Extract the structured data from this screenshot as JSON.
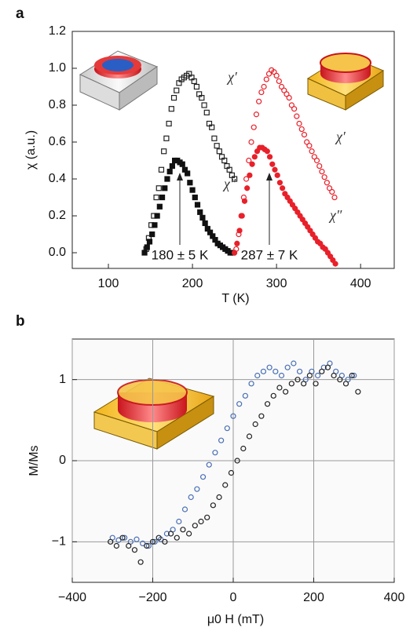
{
  "chart_data": [
    {
      "type": "scatter",
      "panel_label": "a",
      "x_label": "T (K)",
      "y_label": "χ (a.u.)",
      "xlim": [
        57,
        440
      ],
      "ylim": [
        -0.085,
        1.2
      ],
      "xticks": [
        100,
        200,
        300,
        400
      ],
      "yticks": [
        {
          "value": 0,
          "label": "0.0"
        },
        0.2,
        0.4,
        0.6,
        0.8,
        {
          "value": 1,
          "label": "1.0"
        },
        1.2
      ],
      "grid": false,
      "annotations": [
        "180 ± 5 K",
        "287 ± 7 K"
      ],
      "series": [
        {
          "name": "χ′",
          "color": "#222222",
          "marker": "square-open",
          "x": [
            145,
            148,
            151,
            154,
            157,
            160,
            163,
            166,
            169,
            172,
            175,
            178,
            181,
            184,
            187,
            190,
            193,
            196,
            199,
            202,
            205,
            208,
            211,
            214,
            217,
            220,
            223,
            226,
            229,
            232,
            235,
            238,
            241,
            244,
            247,
            250
          ],
          "values": [
            0.02,
            0.08,
            0.15,
            0.2,
            0.3,
            0.35,
            0.45,
            0.55,
            0.62,
            0.7,
            0.78,
            0.84,
            0.88,
            0.92,
            0.94,
            0.95,
            0.96,
            0.97,
            0.95,
            0.93,
            0.9,
            0.86,
            0.84,
            0.8,
            0.76,
            0.7,
            0.68,
            0.62,
            0.58,
            0.55,
            0.52,
            0.5,
            0.47,
            0.45,
            0.42,
            0.4
          ]
        },
        {
          "name": "χ″",
          "color": "#111111",
          "marker": "square-filled",
          "x": [
            143,
            146,
            149,
            152,
            155,
            158,
            161,
            164,
            167,
            170,
            173,
            176,
            179,
            182,
            185,
            188,
            191,
            194,
            197,
            200,
            203,
            206,
            209,
            212,
            215,
            218,
            221,
            224,
            227,
            230,
            233,
            236,
            239,
            242,
            245,
            248
          ],
          "values": [
            0.0,
            0.03,
            0.06,
            0.1,
            0.15,
            0.2,
            0.25,
            0.3,
            0.35,
            0.4,
            0.44,
            0.47,
            0.5,
            0.5,
            0.49,
            0.48,
            0.45,
            0.43,
            0.38,
            0.34,
            0.3,
            0.26,
            0.22,
            0.19,
            0.16,
            0.13,
            0.11,
            0.09,
            0.07,
            0.05,
            0.04,
            0.03,
            0.02,
            0.01,
            0.0,
            0.0
          ]
        },
        {
          "name": "χ′",
          "color": "#e8202a",
          "marker": "circle-open",
          "x": [
            252,
            255,
            258,
            261,
            264,
            267,
            270,
            273,
            276,
            279,
            282,
            285,
            288,
            291,
            294,
            297,
            300,
            303,
            306,
            309,
            312,
            315,
            318,
            321,
            324,
            327,
            330,
            333,
            336,
            339,
            342,
            345,
            348,
            351,
            354,
            357,
            360,
            363,
            366,
            369
          ],
          "values": [
            0.02,
            0.1,
            0.2,
            0.3,
            0.4,
            0.5,
            0.6,
            0.68,
            0.75,
            0.82,
            0.87,
            0.9,
            0.94,
            0.97,
            0.99,
            0.98,
            0.96,
            0.93,
            0.9,
            0.88,
            0.86,
            0.84,
            0.8,
            0.78,
            0.74,
            0.7,
            0.67,
            0.64,
            0.6,
            0.58,
            0.55,
            0.52,
            0.5,
            0.47,
            0.44,
            0.41,
            0.38,
            0.35,
            0.33,
            0.3
          ]
        },
        {
          "name": "χ″",
          "color": "#e8202a",
          "marker": "circle-filled",
          "x": [
            250,
            253,
            256,
            259,
            262,
            265,
            268,
            271,
            274,
            277,
            280,
            283,
            286,
            289,
            292,
            295,
            298,
            301,
            304,
            307,
            310,
            313,
            316,
            319,
            322,
            325,
            328,
            331,
            334,
            337,
            340,
            343,
            346,
            349,
            352,
            355,
            358,
            361,
            364,
            367,
            370
          ],
          "values": [
            0.0,
            0.05,
            0.12,
            0.2,
            0.28,
            0.35,
            0.42,
            0.48,
            0.52,
            0.55,
            0.57,
            0.57,
            0.56,
            0.55,
            0.52,
            0.48,
            0.45,
            0.42,
            0.38,
            0.35,
            0.32,
            0.3,
            0.28,
            0.26,
            0.24,
            0.22,
            0.2,
            0.18,
            0.16,
            0.14,
            0.12,
            0.1,
            0.08,
            0.06,
            0.05,
            0.03,
            0.02,
            0.0,
            -0.02,
            -0.04,
            -0.06
          ]
        }
      ]
    },
    {
      "type": "scatter",
      "panel_label": "b",
      "x_label": "μ0 H (mT)",
      "y_label": "M/Ms",
      "xlim": [
        -400,
        400
      ],
      "ylim": [
        -1.5,
        1.5
      ],
      "xticks": [
        {
          "value": -400,
          "label": "−400"
        },
        {
          "value": -200,
          "label": "−200"
        },
        0,
        200,
        400
      ],
      "yticks": [
        {
          "value": -1,
          "label": "−1"
        },
        0,
        1
      ],
      "grid": true,
      "series": [
        {
          "color": "#4a6fb5",
          "marker": "circle-open",
          "x": [
            -300,
            -285,
            -270,
            -255,
            -240,
            -225,
            -210,
            -195,
            -180,
            -165,
            -150,
            -135,
            -120,
            -105,
            -90,
            -75,
            -60,
            -45,
            -30,
            -15,
            0,
            15,
            30,
            45,
            60,
            75,
            90,
            105,
            120,
            135,
            150,
            165,
            180,
            195,
            210,
            225,
            240,
            255,
            270,
            285,
            300
          ],
          "values": [
            -0.95,
            -0.98,
            -0.95,
            -1.0,
            -0.97,
            -1.02,
            -1.05,
            -1.0,
            -0.97,
            -0.9,
            -0.85,
            -0.75,
            -0.6,
            -0.45,
            -0.35,
            -0.2,
            -0.05,
            0.1,
            0.25,
            0.4,
            0.55,
            0.7,
            0.8,
            0.95,
            1.05,
            1.1,
            1.15,
            1.1,
            1.05,
            1.15,
            1.2,
            1.1,
            1.0,
            1.1,
            1.05,
            1.15,
            1.2,
            1.1,
            1.05,
            1.0,
            1.05
          ]
        },
        {
          "color": "#222222",
          "marker": "circle-open",
          "x": [
            -305,
            -290,
            -275,
            -260,
            -245,
            -230,
            -215,
            -200,
            -185,
            -170,
            -155,
            -140,
            -125,
            -110,
            -95,
            -80,
            -65,
            -50,
            -35,
            -20,
            -5,
            10,
            25,
            40,
            55,
            70,
            85,
            100,
            115,
            130,
            145,
            160,
            175,
            190,
            205,
            220,
            235,
            250,
            265,
            280,
            295,
            310
          ],
          "values": [
            -1.0,
            -1.05,
            -0.95,
            -1.05,
            -1.1,
            -1.25,
            -1.05,
            -1.0,
            -0.95,
            -1.0,
            -0.9,
            -0.95,
            -0.85,
            -0.9,
            -0.8,
            -0.75,
            -0.7,
            -0.55,
            -0.45,
            -0.3,
            -0.15,
            0.0,
            0.15,
            0.3,
            0.45,
            0.55,
            0.7,
            0.8,
            0.9,
            0.85,
            0.95,
            1.0,
            0.95,
            1.05,
            0.95,
            1.1,
            1.15,
            1.05,
            1.0,
            0.95,
            1.05,
            0.85
          ]
        }
      ]
    }
  ]
}
